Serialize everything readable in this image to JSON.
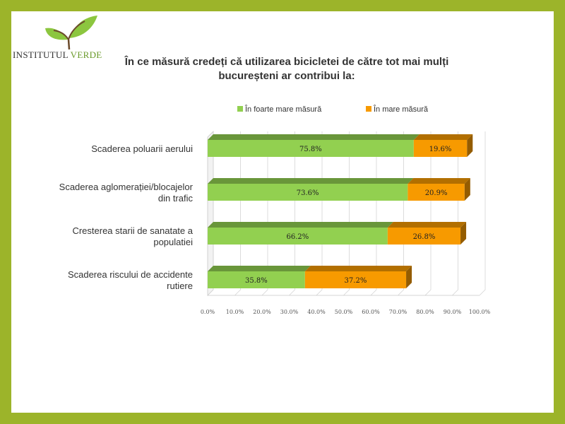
{
  "logo": {
    "part1": "INSTITUTUL",
    "part2": "VERDE"
  },
  "title_line1": "În ce măsură credeți că utilizarea bicicletei de către tot mai mulți",
  "title_line2": "bucureșteni ar contribui la:",
  "colors": {
    "frame": "#9cb42a",
    "series1": "#92d050",
    "series2": "#f79a00"
  },
  "chart_data": {
    "type": "bar",
    "orientation": "horizontal",
    "stacked": true,
    "categories": [
      [
        "Scaderea poluarii aerului"
      ],
      [
        "Scaderea aglomerației/blocajelor",
        "din trafic"
      ],
      [
        "Cresterea starii de sanatate a",
        "populatiei"
      ],
      [
        "Scaderea riscului de accidente",
        "rutiere"
      ]
    ],
    "series": [
      {
        "name": "În foarte mare măsură",
        "values": [
          75.8,
          73.6,
          66.2,
          35.8
        ],
        "labels": [
          "75.8%",
          "73.6%",
          "66.2%",
          "35.8%"
        ]
      },
      {
        "name": "În mare măsură",
        "values": [
          19.6,
          20.9,
          26.8,
          37.2
        ],
        "labels": [
          "19.6%",
          "20.9%",
          "26.8%",
          "37.2%"
        ]
      }
    ],
    "xlim": [
      0,
      100
    ],
    "xticks": [
      "0.0%",
      "10.0%",
      "20.0%",
      "30.0%",
      "40.0%",
      "50.0%",
      "60.0%",
      "70.0%",
      "80.0%",
      "90.0%",
      "100.0%"
    ],
    "grid": true,
    "legend": "top"
  }
}
